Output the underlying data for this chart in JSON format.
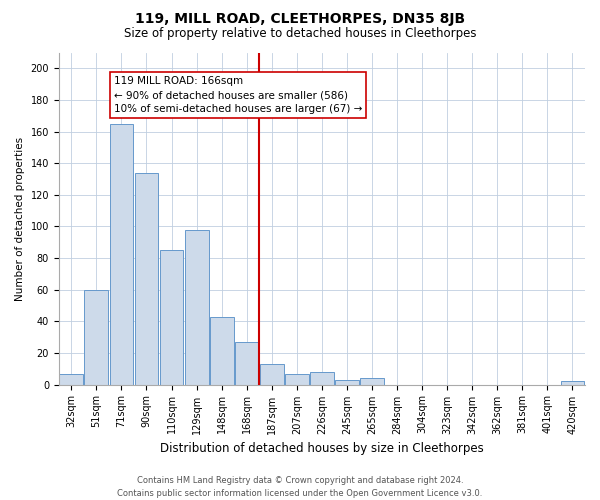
{
  "title": "119, MILL ROAD, CLEETHORPES, DN35 8JB",
  "subtitle": "Size of property relative to detached houses in Cleethorpes",
  "xlabel": "Distribution of detached houses by size in Cleethorpes",
  "ylabel": "Number of detached properties",
  "bar_labels": [
    "32sqm",
    "51sqm",
    "71sqm",
    "90sqm",
    "110sqm",
    "129sqm",
    "148sqm",
    "168sqm",
    "187sqm",
    "207sqm",
    "226sqm",
    "245sqm",
    "265sqm",
    "284sqm",
    "304sqm",
    "323sqm",
    "342sqm",
    "362sqm",
    "381sqm",
    "401sqm",
    "420sqm"
  ],
  "bar_values": [
    7,
    60,
    165,
    134,
    85,
    98,
    43,
    27,
    13,
    7,
    8,
    3,
    4,
    0,
    0,
    0,
    0,
    0,
    0,
    0,
    2
  ],
  "bar_color": "#cddaea",
  "bar_edge_color": "#6699cc",
  "vline_x": 7.5,
  "vline_color": "#cc0000",
  "annotation_line1": "119 MILL ROAD: 166sqm",
  "annotation_line2": "← 90% of detached houses are smaller (586)",
  "annotation_line3": "10% of semi-detached houses are larger (67) →",
  "annotation_box_color": "#ffffff",
  "annotation_box_edge": "#cc0000",
  "ylim": [
    0,
    210
  ],
  "yticks": [
    0,
    20,
    40,
    60,
    80,
    100,
    120,
    140,
    160,
    180,
    200
  ],
  "footer_line1": "Contains HM Land Registry data © Crown copyright and database right 2024.",
  "footer_line2": "Contains public sector information licensed under the Open Government Licence v3.0.",
  "bg_color": "#ffffff",
  "grid_color": "#c0cfe0",
  "title_fontsize": 10,
  "subtitle_fontsize": 8.5,
  "xlabel_fontsize": 8.5,
  "ylabel_fontsize": 7.5,
  "tick_fontsize": 7,
  "footer_fontsize": 6,
  "annot_fontsize": 7.5
}
